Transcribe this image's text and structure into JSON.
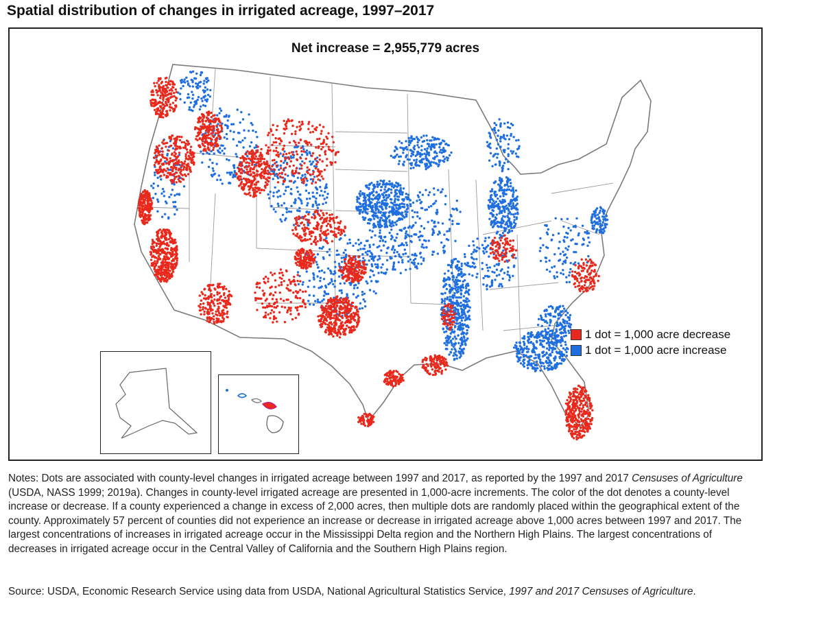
{
  "title": "Spatial distribution of changes in irrigated acreage, 1997–2017",
  "map_subtitle": "Net increase = 2,955,779 acres",
  "legend": {
    "decrease": {
      "label": "1 dot = 1,000 acre decrease",
      "color": "#e8291c"
    },
    "increase": {
      "label": "1 dot = 1,000 acre increase",
      "color": "#1f6fe0"
    }
  },
  "notes": {
    "lead": "Notes: Dots are associated with county-level changes in irrigated acreage between 1997 and 2017, as reported by the 1997 and 2017 ",
    "italic": "Censuses of Agriculture",
    "rest": " (USDA, NASS 1999; 2019a). Changes in county-level irrigated acreage are presented in 1,000-acre increments. The color of the dot denotes a county-level increase or decrease. If a county experienced a change in excess of 2,000 acres, then multiple dots are randomly placed within the geographical extent of the county. Approximately 57 percent of counties did not experience an increase or decrease in irrigated acreage above 1,000 acres between 1997 and 2017. The largest concentrations of increases in irrigated acreage occur in the Mississippi Delta region and the Northern High Plains. The largest concentrations of decreases in irrigated acreage occur in the Central Valley of California and the Southern High Plains region."
  },
  "source": {
    "lead": "Source: USDA, Economic Research Service using data from USDA, National Agricultural Statistics Service, ",
    "italic": "1997 and 2017 Censuses of Agriculture",
    "end": "."
  }
}
